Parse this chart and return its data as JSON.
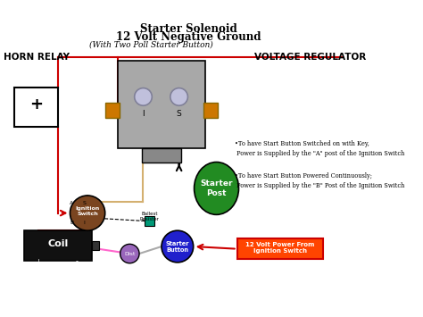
{
  "title_line1": "Starter Solenoid",
  "title_line2": "12 Volt Negative Ground",
  "subtitle": "(With Two Poll Starter Button)",
  "horn_relay_label": "HORN RELAY",
  "voltage_reg_label": "VOLTAGE REGULATOR",
  "note1": "•To have Start Button Switched on with Key,\n Power is Supplied by the \"A\" post of the Ignition Switch",
  "note2": "•To have Start Button Powered Continuously;\n Power is Supplied by the \"B\" Post of the Ignition Switch",
  "bg_color": "#ffffff",
  "solenoid_color": "#a8a8a8",
  "coil_color": "#111111",
  "ignition_color": "#7a4520",
  "starter_post_color": "#228B22",
  "starter_button_color": "#2020cc",
  "dist_color": "#9966bb",
  "ballast_color": "#009977",
  "wire_red": "#cc0000",
  "wire_black": "#000000",
  "wire_tan": "#d4b070",
  "wire_pink": "#ff8888",
  "tab_color": "#cc7700",
  "pb_fill": "#ff4400",
  "pb_edge": "#cc0000"
}
